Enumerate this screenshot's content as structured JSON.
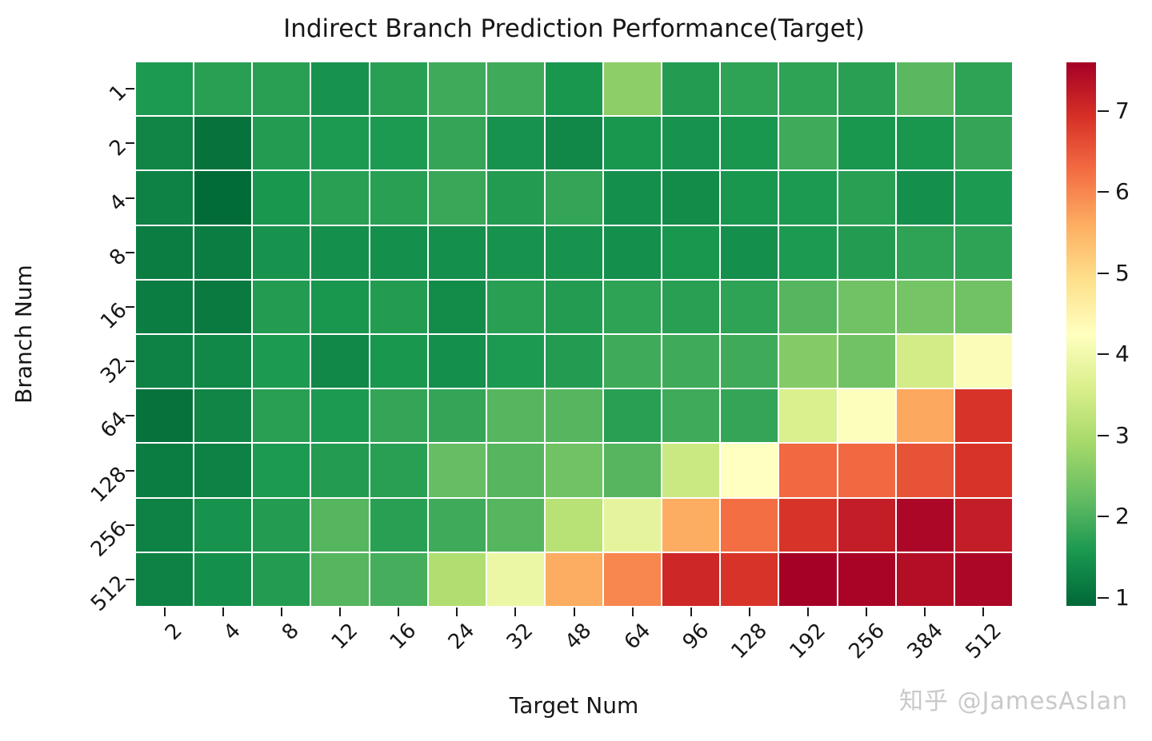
{
  "title": "Indirect Branch Prediction Performance(Target)",
  "watermark": "知乎 @JamesAslan",
  "chart_data": {
    "type": "heatmap",
    "title": "Indirect Branch Prediction Performance(Target)",
    "xlabel": "Target Num",
    "ylabel": "Branch Num",
    "x_categories": [
      "2",
      "4",
      "8",
      "12",
      "16",
      "24",
      "32",
      "48",
      "64",
      "96",
      "128",
      "192",
      "256",
      "384",
      "512"
    ],
    "y_categories": [
      "1",
      "2",
      "4",
      "8",
      "16",
      "32",
      "64",
      "128",
      "256",
      "512"
    ],
    "values": [
      [
        1.6,
        1.7,
        1.7,
        1.5,
        1.7,
        1.9,
        1.9,
        1.55,
        2.65,
        1.65,
        1.75,
        1.75,
        1.7,
        2.15,
        1.75
      ],
      [
        1.3,
        1.05,
        1.65,
        1.6,
        1.6,
        1.8,
        1.5,
        1.35,
        1.55,
        1.5,
        1.55,
        1.9,
        1.55,
        1.55,
        1.8
      ],
      [
        1.25,
        0.95,
        1.55,
        1.7,
        1.7,
        1.85,
        1.65,
        1.8,
        1.45,
        1.4,
        1.55,
        1.6,
        1.7,
        1.45,
        1.6
      ],
      [
        1.2,
        1.2,
        1.5,
        1.45,
        1.45,
        1.45,
        1.5,
        1.5,
        1.45,
        1.55,
        1.45,
        1.6,
        1.65,
        1.75,
        1.75
      ],
      [
        1.2,
        1.15,
        1.65,
        1.55,
        1.65,
        1.4,
        1.7,
        1.65,
        1.75,
        1.7,
        1.75,
        2.1,
        2.35,
        2.4,
        2.35
      ],
      [
        1.25,
        1.35,
        1.6,
        1.35,
        1.55,
        1.45,
        1.6,
        1.65,
        1.9,
        1.9,
        1.9,
        2.55,
        2.35,
        3.5,
        4.15
      ],
      [
        1.05,
        1.3,
        1.7,
        1.6,
        1.8,
        1.8,
        2.1,
        2.1,
        1.7,
        1.9,
        1.8,
        3.6,
        4.2,
        5.65,
        6.9
      ],
      [
        1.2,
        1.25,
        1.6,
        1.65,
        1.7,
        2.25,
        2.1,
        2.35,
        2.1,
        3.4,
        4.25,
        6.3,
        6.3,
        6.55,
        6.9
      ],
      [
        1.25,
        1.5,
        1.65,
        2.1,
        1.7,
        1.9,
        2.1,
        3.15,
        3.8,
        5.6,
        6.25,
        6.9,
        7.2,
        7.5,
        7.2
      ],
      [
        1.25,
        1.45,
        1.65,
        2.1,
        1.95,
        3.05,
        3.9,
        5.6,
        6.0,
        7.05,
        6.9,
        7.6,
        7.55,
        7.4,
        7.5
      ]
    ],
    "vmin": 0.9,
    "vmax": 7.6,
    "colormap": "RdYlGn_r",
    "colormap_colors_low_to_high": [
      "#006837",
      "#1a9850",
      "#66bd63",
      "#a6d96a",
      "#d9ef8b",
      "#ffffbf",
      "#fee08b",
      "#fdae61",
      "#f46d43",
      "#d73027",
      "#a50026"
    ],
    "colorbar_ticks": [
      "1",
      "2",
      "3",
      "4",
      "5",
      "6",
      "7"
    ],
    "grid_line_color": "#ffffff",
    "legend_position": "right-colorbar"
  }
}
